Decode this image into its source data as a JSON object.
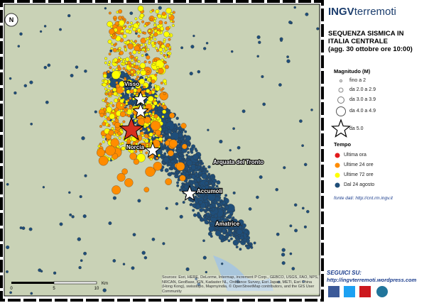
{
  "logo": {
    "bold": "INGV",
    "light": "terremoti"
  },
  "title": [
    "SEQUENZA SISMICA IN",
    "ITALIA CENTRALE",
    "(agg. 30 ottobre ore 10:00)"
  ],
  "magnitude": {
    "title": "Magnitudo (M)",
    "items": [
      "fino a 2",
      "da 2.0 a 2.9",
      "da 3.0 a 3.9",
      "da 4.0 a 4.9",
      "da 5.0"
    ]
  },
  "time": {
    "title": "Tempo",
    "items": [
      {
        "label": "Ultima ora",
        "color": "#e31a1c"
      },
      {
        "label": "Ultime 24 ore",
        "color": "#ff8c00"
      },
      {
        "label": "Ultime 72 ore",
        "color": "#ffff00"
      },
      {
        "label": "Dal 24 agosto",
        "color": "#1f4e79"
      }
    ]
  },
  "source": "fonte dati: http://cnt.rm.ingv.it",
  "follow": {
    "title": "SEGUICI SU:",
    "url": "http://ingvterremoti.wordpress.com"
  },
  "places": [
    "Visso",
    "Norcia",
    "Arquata del Tronto",
    "Accumoli",
    "Amatrice"
  ],
  "scale": {
    "ticks": [
      "0",
      "5",
      "10"
    ],
    "unit": "Km"
  },
  "credits": "Sources: Esri, HERE, DeLorme, Intermap, increment P Corp., GEBCO, USGS, FAO, NPS, NRCAN, GeoBase, IGN, Kadaster NL, Ordnance Survey, Esri Japan, METI, Esri China (Hong Kong), swisstopo, Mapmyindia, © OpenStreetMap contributors, and the GIS User Community"
}
